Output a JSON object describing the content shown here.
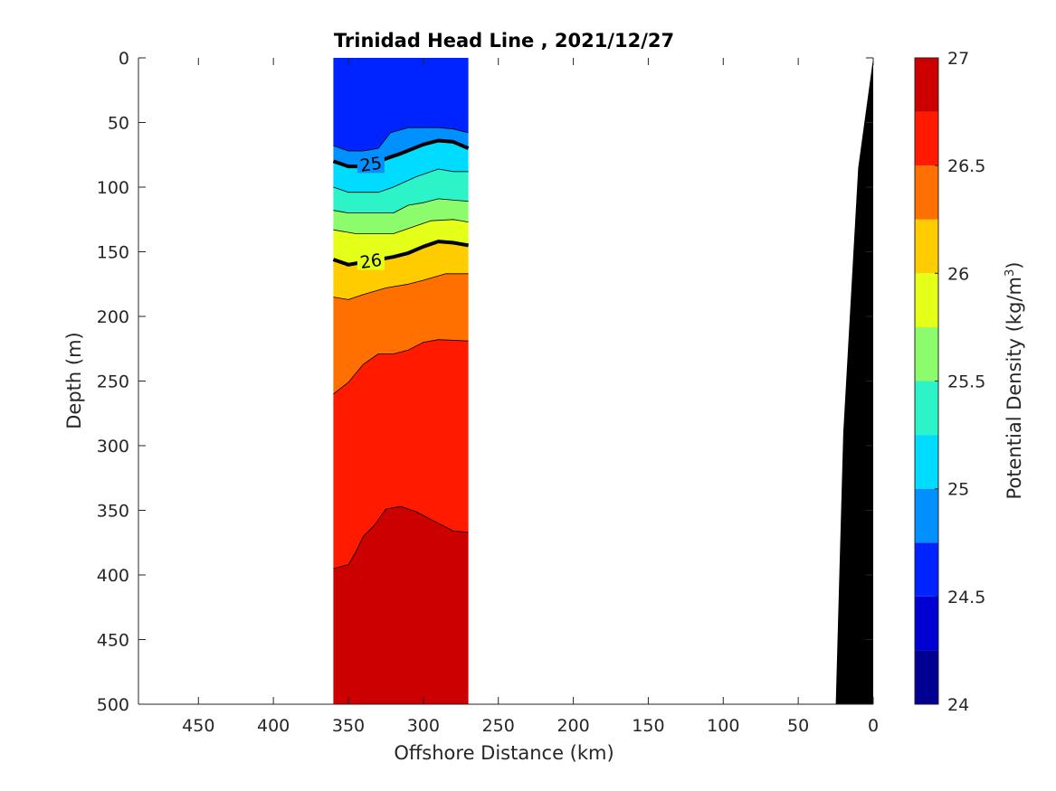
{
  "chart_data": {
    "type": "filled-contour",
    "title": "Trinidad Head Line , 2021/12/27",
    "xlabel": "Offshore Distance (km)",
    "ylabel": "Depth (m)",
    "xlim": [
      490,
      0
    ],
    "ylim": [
      0,
      500
    ],
    "x_reversed": true,
    "y_reversed": true,
    "x_ticks": [
      450,
      400,
      350,
      300,
      250,
      200,
      150,
      100,
      50,
      0
    ],
    "y_ticks": [
      0,
      50,
      100,
      150,
      200,
      250,
      300,
      350,
      400,
      450,
      500
    ],
    "data_extent_x": [
      360,
      270
    ],
    "colorbar": {
      "label": "Potential Density (kg/m³)",
      "label_main": "Potential Density (kg/m",
      "label_sup": "3",
      "label_end": ")",
      "range": [
        24,
        27
      ],
      "ticks": [
        24,
        24.5,
        25,
        25.5,
        26,
        26.5,
        27
      ],
      "tick_labels": [
        "24",
        "24.5",
        "25",
        "25.5",
        "26",
        "26.5",
        "27"
      ],
      "levels": [
        24,
        24.25,
        24.5,
        24.75,
        25,
        25.25,
        25.5,
        25.75,
        26,
        26.25,
        26.5,
        26.75,
        27
      ],
      "colors": [
        "#000092",
        "#0000d2",
        "#0024ff",
        "#0090ff",
        "#00dcff",
        "#2cf4c8",
        "#8cfc6c",
        "#e4ff18",
        "#ffcc00",
        "#ff7000",
        "#ff1a00",
        "#cc0000"
      ]
    },
    "isopycnals": [
      {
        "level": 24.75,
        "points": [
          [
            360,
            68
          ],
          [
            350,
            72
          ],
          [
            340,
            72
          ],
          [
            330,
            70
          ],
          [
            322,
            58
          ],
          [
            310,
            54
          ],
          [
            290,
            54
          ],
          [
            280,
            55
          ],
          [
            270,
            58
          ]
        ]
      },
      {
        "level": 25.0,
        "label": "25",
        "bold": true,
        "points": [
          [
            360,
            80
          ],
          [
            350,
            84
          ],
          [
            340,
            84
          ],
          [
            330,
            80
          ],
          [
            315,
            74
          ],
          [
            300,
            67
          ],
          [
            290,
            64
          ],
          [
            280,
            65
          ],
          [
            270,
            70
          ]
        ]
      },
      {
        "level": 25.25,
        "points": [
          [
            360,
            100
          ],
          [
            350,
            104
          ],
          [
            340,
            104
          ],
          [
            330,
            104
          ],
          [
            320,
            100
          ],
          [
            305,
            92
          ],
          [
            290,
            86
          ],
          [
            280,
            88
          ],
          [
            270,
            88
          ]
        ]
      },
      {
        "level": 25.5,
        "points": [
          [
            360,
            118
          ],
          [
            350,
            120
          ],
          [
            340,
            120
          ],
          [
            330,
            120
          ],
          [
            320,
            120
          ],
          [
            310,
            114
          ],
          [
            300,
            112
          ],
          [
            290,
            109
          ],
          [
            270,
            111
          ]
        ]
      },
      {
        "level": 25.75,
        "points": [
          [
            360,
            133
          ],
          [
            345,
            136
          ],
          [
            330,
            136
          ],
          [
            320,
            136
          ],
          [
            310,
            132
          ],
          [
            295,
            126
          ],
          [
            280,
            125
          ],
          [
            270,
            127
          ]
        ]
      },
      {
        "level": 26.0,
        "label": "26",
        "bold": true,
        "points": [
          [
            360,
            156
          ],
          [
            350,
            160
          ],
          [
            340,
            158
          ],
          [
            330,
            156
          ],
          [
            320,
            154
          ],
          [
            310,
            151
          ],
          [
            300,
            146
          ],
          [
            290,
            142
          ],
          [
            280,
            143
          ],
          [
            270,
            145
          ]
        ]
      },
      {
        "level": 26.25,
        "points": [
          [
            360,
            185
          ],
          [
            350,
            187
          ],
          [
            340,
            183
          ],
          [
            325,
            178
          ],
          [
            310,
            175
          ],
          [
            300,
            172
          ],
          [
            285,
            167
          ],
          [
            270,
            167
          ]
        ]
      },
      {
        "level": 26.5,
        "points": [
          [
            360,
            260
          ],
          [
            350,
            251
          ],
          [
            340,
            237
          ],
          [
            330,
            229
          ],
          [
            320,
            229
          ],
          [
            310,
            226
          ],
          [
            300,
            220
          ],
          [
            290,
            218
          ],
          [
            270,
            219
          ]
        ]
      },
      {
        "level": 26.75,
        "points": [
          [
            360,
            395
          ],
          [
            350,
            392
          ],
          [
            345,
            382
          ],
          [
            340,
            370
          ],
          [
            333,
            362
          ],
          [
            325,
            349
          ],
          [
            315,
            347
          ],
          [
            305,
            351
          ],
          [
            290,
            360
          ],
          [
            280,
            366
          ],
          [
            270,
            367
          ]
        ]
      }
    ],
    "bathymetry": [
      [
        0,
        0
      ],
      [
        10,
        85
      ],
      [
        20,
        290
      ],
      [
        25,
        500
      ],
      [
        0,
        500
      ]
    ]
  }
}
